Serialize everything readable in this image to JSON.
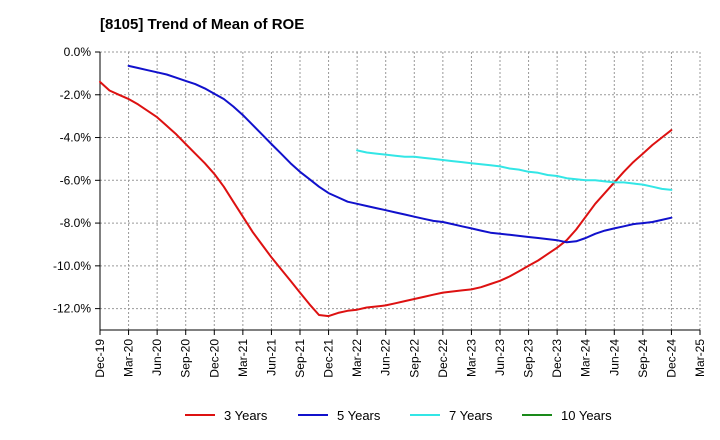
{
  "chart_data": {
    "type": "line",
    "title": "[8105]  Trend of Mean of ROE",
    "xlabel": "",
    "ylabel": "",
    "ylim": [
      -13.0,
      0.0
    ],
    "y_ticks": [
      0,
      -2,
      -4,
      -6,
      -8,
      -10,
      -12
    ],
    "y_tick_labels": [
      "0.0%",
      "-2.0%",
      "-4.0%",
      "-6.0%",
      "-8.0%",
      "-10.0%",
      "-12.0%"
    ],
    "x_tick_labels": [
      "Dec-19",
      "Mar-20",
      "Jun-20",
      "Sep-20",
      "Dec-20",
      "Mar-21",
      "Jun-21",
      "Sep-21",
      "Dec-21",
      "Mar-22",
      "Jun-22",
      "Sep-22",
      "Dec-22",
      "Mar-23",
      "Jun-23",
      "Sep-23",
      "Dec-23",
      "Mar-24",
      "Jun-24",
      "Sep-24",
      "Dec-24",
      "Mar-25"
    ],
    "grid": true,
    "legend_position": "bottom",
    "series": [
      {
        "name": "3 Years",
        "color": "#dd1111",
        "x": [
          "Dec-19",
          "Jan-20",
          "Feb-20",
          "Mar-20",
          "Apr-20",
          "May-20",
          "Jun-20",
          "Jul-20",
          "Aug-20",
          "Sep-20",
          "Oct-20",
          "Nov-20",
          "Dec-20",
          "Jan-21",
          "Feb-21",
          "Mar-21",
          "Apr-21",
          "May-21",
          "Jun-21",
          "Jul-21",
          "Aug-21",
          "Sep-21",
          "Oct-21",
          "Nov-21",
          "Dec-21",
          "Jan-22",
          "Feb-22",
          "Mar-22",
          "Apr-22",
          "May-22",
          "Jun-22",
          "Jul-22",
          "Aug-22",
          "Sep-22",
          "Oct-22",
          "Nov-22",
          "Dec-22",
          "Jan-23",
          "Feb-23",
          "Mar-23",
          "Apr-23",
          "May-23",
          "Jun-23",
          "Jul-23",
          "Aug-23",
          "Sep-23",
          "Oct-23",
          "Nov-23",
          "Dec-23",
          "Jan-24",
          "Feb-24",
          "Mar-24",
          "Apr-24",
          "May-24",
          "Jun-24",
          "Jul-24",
          "Aug-24",
          "Sep-24",
          "Oct-24",
          "Nov-24",
          "Dec-24"
        ],
        "values": [
          -1.4,
          -1.8,
          -2.0,
          -2.2,
          -2.45,
          -2.75,
          -3.05,
          -3.45,
          -3.85,
          -4.3,
          -4.75,
          -5.2,
          -5.7,
          -6.3,
          -7.0,
          -7.7,
          -8.4,
          -9.0,
          -9.6,
          -10.15,
          -10.7,
          -11.25,
          -11.8,
          -12.3,
          -12.35,
          -12.2,
          -12.1,
          -12.05,
          -11.95,
          -11.9,
          -11.85,
          -11.75,
          -11.65,
          -11.55,
          -11.45,
          -11.35,
          -11.25,
          -11.2,
          -11.15,
          -11.1,
          -11.0,
          -10.85,
          -10.7,
          -10.5,
          -10.25,
          -10.0,
          -9.75,
          -9.45,
          -9.15,
          -8.8,
          -8.3,
          -7.7,
          -7.1,
          -6.6,
          -6.1,
          -5.6,
          -5.15,
          -4.75,
          -4.35,
          -4.0,
          -3.65
        ]
      },
      {
        "name": "5 Years",
        "color": "#1111cc",
        "x": [
          "Mar-20",
          "Apr-20",
          "May-20",
          "Jun-20",
          "Jul-20",
          "Aug-20",
          "Sep-20",
          "Oct-20",
          "Nov-20",
          "Dec-20",
          "Jan-21",
          "Feb-21",
          "Mar-21",
          "Apr-21",
          "May-21",
          "Jun-21",
          "Jul-21",
          "Aug-21",
          "Sep-21",
          "Oct-21",
          "Nov-21",
          "Dec-21",
          "Jan-22",
          "Feb-22",
          "Mar-22",
          "Apr-22",
          "May-22",
          "Jun-22",
          "Jul-22",
          "Aug-22",
          "Sep-22",
          "Oct-22",
          "Nov-22",
          "Dec-22",
          "Jan-23",
          "Feb-23",
          "Mar-23",
          "Apr-23",
          "May-23",
          "Jun-23",
          "Jul-23",
          "Aug-23",
          "Sep-23",
          "Oct-23",
          "Nov-23",
          "Dec-23",
          "Jan-24",
          "Feb-24",
          "Mar-24",
          "Apr-24",
          "May-24",
          "Jun-24",
          "Jul-24",
          "Aug-24",
          "Sep-24",
          "Oct-24",
          "Nov-24",
          "Dec-24"
        ],
        "values": [
          -0.65,
          -0.75,
          -0.85,
          -0.95,
          -1.05,
          -1.2,
          -1.35,
          -1.5,
          -1.7,
          -1.95,
          -2.2,
          -2.55,
          -2.95,
          -3.4,
          -3.85,
          -4.3,
          -4.75,
          -5.2,
          -5.6,
          -5.95,
          -6.3,
          -6.6,
          -6.8,
          -7.0,
          -7.1,
          -7.2,
          -7.3,
          -7.4,
          -7.5,
          -7.6,
          -7.7,
          -7.8,
          -7.9,
          -7.95,
          -8.05,
          -8.15,
          -8.25,
          -8.35,
          -8.45,
          -8.5,
          -8.55,
          -8.6,
          -8.65,
          -8.7,
          -8.75,
          -8.8,
          -8.9,
          -8.85,
          -8.7,
          -8.5,
          -8.35,
          -8.25,
          -8.15,
          -8.05,
          -8.0,
          -7.95,
          -7.85,
          -7.75
        ]
      },
      {
        "name": "7 Years",
        "color": "#33e6e6",
        "x": [
          "Mar-22",
          "Apr-22",
          "May-22",
          "Jun-22",
          "Jul-22",
          "Aug-22",
          "Sep-22",
          "Oct-22",
          "Nov-22",
          "Dec-22",
          "Jan-23",
          "Feb-23",
          "Mar-23",
          "Apr-23",
          "May-23",
          "Jun-23",
          "Jul-23",
          "Aug-23",
          "Sep-23",
          "Oct-23",
          "Nov-23",
          "Dec-23",
          "Jan-24",
          "Feb-24",
          "Mar-24",
          "Apr-24",
          "May-24",
          "Jun-24",
          "Jul-24",
          "Aug-24",
          "Sep-24",
          "Oct-24",
          "Nov-24",
          "Dec-24"
        ],
        "values": [
          -4.6,
          -4.7,
          -4.75,
          -4.8,
          -4.85,
          -4.9,
          -4.9,
          -4.95,
          -5.0,
          -5.05,
          -5.1,
          -5.15,
          -5.2,
          -5.25,
          -5.3,
          -5.35,
          -5.45,
          -5.5,
          -5.6,
          -5.65,
          -5.75,
          -5.8,
          -5.9,
          -5.95,
          -6.0,
          -6.0,
          -6.05,
          -6.1,
          -6.1,
          -6.15,
          -6.2,
          -6.3,
          -6.4,
          -6.45
        ]
      },
      {
        "name": "10 Years",
        "color": "#1a8a1a",
        "x": [],
        "values": []
      }
    ]
  }
}
